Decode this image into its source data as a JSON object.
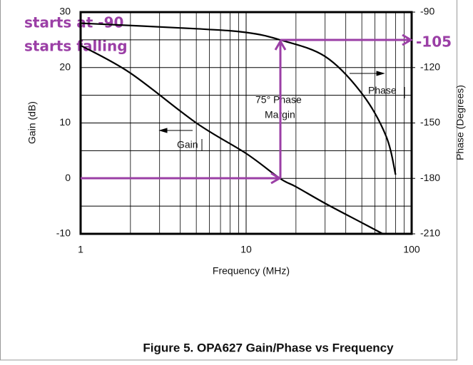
{
  "chart_data": {
    "type": "line",
    "title": "Figure 5. OPA627 Gain/Phase vs Frequency",
    "x_label": "Frequency (MHz)",
    "y_label": "Gain (dB)",
    "y2_label": "Phase (Degrees)",
    "x_log": true,
    "grid": true,
    "xlim": [
      1,
      100
    ],
    "xticks": [
      1,
      10,
      100
    ],
    "ylim": [
      -10,
      30
    ],
    "yticks": [
      30,
      20,
      10,
      0,
      -10
    ],
    "y2lim": [
      -210,
      -90
    ],
    "y2ticks": [
      -90,
      -120,
      -150,
      -180,
      -210
    ],
    "series": [
      {
        "name": "Gain",
        "color": "#000000",
        "x": [
          1,
          2,
          5,
          10,
          16,
          20,
          30,
          50,
          67
        ],
        "values": [
          24,
          19,
          10,
          4.5,
          0,
          -1.5,
          -4.5,
          -8,
          -10
        ]
      },
      {
        "name": "Phase",
        "color": "#000000",
        "axis": "y2",
        "x": [
          1,
          5,
          10,
          16,
          30,
          50,
          70,
          80
        ],
        "values": [
          -96,
          -99,
          -101,
          -105,
          -114,
          -134,
          -157,
          -178
        ]
      }
    ],
    "annotations": [
      "75° Phase",
      "Margin",
      "starts at -90",
      "starts falling",
      "-105"
    ]
  }
}
